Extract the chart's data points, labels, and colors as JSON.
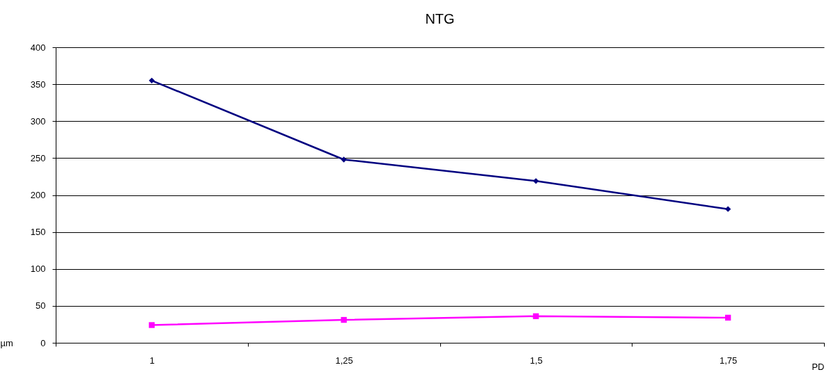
{
  "chart_data": {
    "type": "line",
    "title": "NTG",
    "xlabel": "PD",
    "ylabel": "µm",
    "categories": [
      "1",
      "1,25",
      "1,5",
      "1,75"
    ],
    "series": [
      {
        "color": "#000080",
        "marker": "diamond",
        "values": [
          355,
          248,
          219,
          181
        ]
      },
      {
        "color": "#ff00ff",
        "marker": "square",
        "values": [
          24,
          31,
          36,
          34
        ]
      }
    ],
    "ylim": [
      0,
      400
    ],
    "yticks": [
      0,
      50,
      100,
      150,
      200,
      250,
      300,
      350,
      400
    ],
    "grid": "y"
  }
}
